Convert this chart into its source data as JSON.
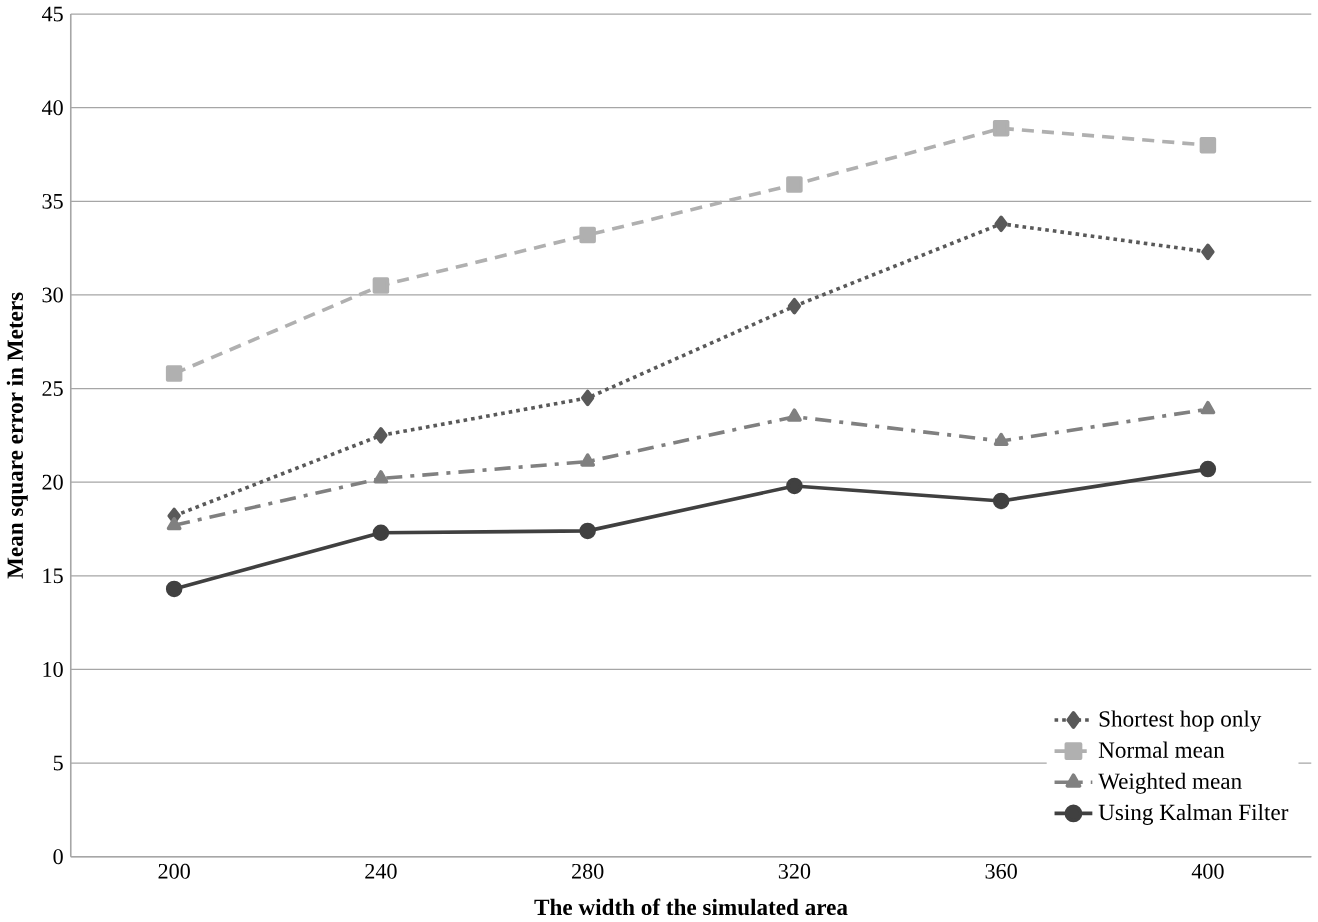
{
  "chart_data": {
    "type": "line",
    "xlabel": "The width of the simulated area",
    "ylabel": "Mean square error in Meters",
    "categories": [
      "200",
      "240",
      "280",
      "320",
      "360",
      "400"
    ],
    "series": [
      {
        "name": "Shortest hop only",
        "color": "#595959",
        "marker": "diamond",
        "line_style": "dotted",
        "values": [
          18.2,
          22.5,
          24.5,
          29.4,
          33.8,
          32.3
        ]
      },
      {
        "name": "Normal mean",
        "color": "#b0b0b0",
        "marker": "square",
        "line_style": "dashed",
        "values": [
          25.8,
          30.5,
          33.2,
          35.9,
          38.9,
          38.0
        ]
      },
      {
        "name": "Weighted mean",
        "color": "#808080",
        "marker": "triangle",
        "line_style": "dashdot",
        "values": [
          17.7,
          20.2,
          21.1,
          23.5,
          22.2,
          23.9
        ]
      },
      {
        "name": "Using Kalman Filter",
        "color": "#404040",
        "marker": "circle",
        "line_style": "solid",
        "values": [
          14.3,
          17.3,
          17.4,
          19.8,
          19.0,
          20.7
        ]
      }
    ],
    "ylim": [
      0,
      45
    ],
    "yticks": [
      0,
      5,
      10,
      15,
      20,
      25,
      30,
      35,
      40,
      45
    ],
    "grid": "y",
    "legend": "bottom right"
  }
}
